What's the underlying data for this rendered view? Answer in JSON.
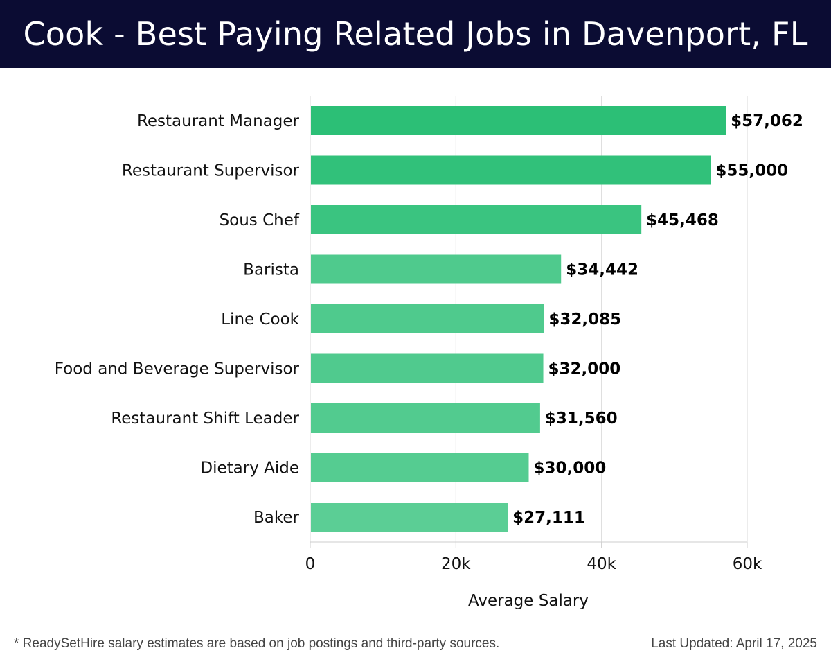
{
  "header": {
    "title": "Cook - Best Paying Related Jobs in Davenport, FL"
  },
  "chart_data": {
    "type": "bar",
    "orientation": "horizontal",
    "title": "Cook - Best Paying Related Jobs in Davenport, FL",
    "xlabel": "Average Salary",
    "ylabel": "",
    "xlim": [
      0,
      60000
    ],
    "xticks": [
      0,
      20000,
      40000,
      60000
    ],
    "xtick_labels": [
      "0",
      "20k",
      "40k",
      "60k"
    ],
    "grid": "vertical",
    "categories": [
      "Restaurant Manager",
      "Restaurant Supervisor",
      "Sous Chef",
      "Barista",
      "Line Cook",
      "Food and Beverage Supervisor",
      "Restaurant Shift Leader",
      "Dietary Aide",
      "Baker"
    ],
    "values": [
      57062,
      55000,
      45468,
      34442,
      32085,
      32000,
      31560,
      30000,
      27111
    ],
    "data_labels": [
      "$57,062",
      "$55,000",
      "$45,468",
      "$34,442",
      "$32,085",
      "$32,000",
      "$31,560",
      "$30,000",
      "$27,111"
    ],
    "bar_colors": [
      "#2cbf76",
      "#31c17a",
      "#3ac480",
      "#4fca8d",
      "#4fca8d",
      "#50ca8e",
      "#52cb8f",
      "#55cc91",
      "#5bce95"
    ]
  },
  "footer": {
    "note": "* ReadySetHire salary estimates are based on job postings and third-party sources.",
    "updated": "Last Updated: April 17, 2025"
  }
}
